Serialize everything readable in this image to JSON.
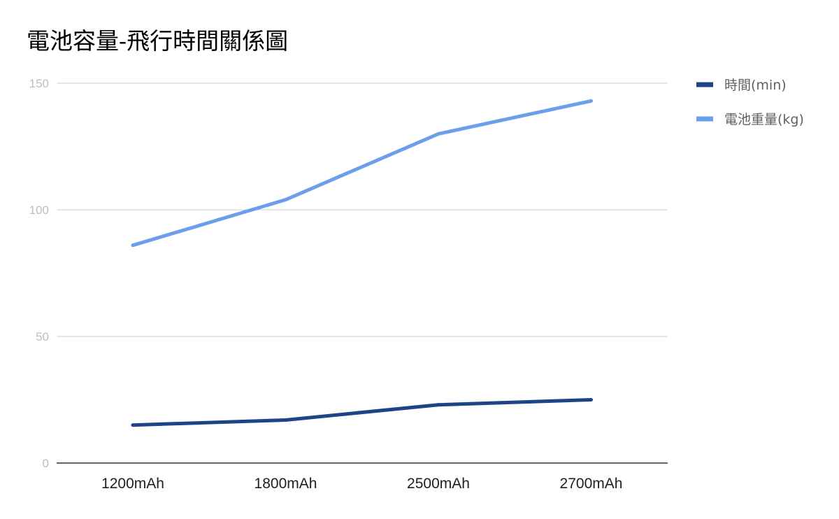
{
  "chart_data": {
    "type": "line",
    "title": "電池容量-飛行時間關係圖",
    "xlabel": "",
    "ylabel": "",
    "categories": [
      "1200mAh",
      "1800mAh",
      "2500mAh",
      "2700mAh"
    ],
    "ylim": [
      0,
      150
    ],
    "yticks": [
      0,
      50,
      100,
      150
    ],
    "grid": true,
    "legend_position": "right",
    "series": [
      {
        "name": "時間(min)",
        "values": [
          15,
          17,
          23,
          25
        ],
        "color": "#1c4587"
      },
      {
        "name": "電池重量(kg)",
        "values": [
          86,
          104,
          130,
          143
        ],
        "color": "#6d9eeb"
      }
    ]
  }
}
